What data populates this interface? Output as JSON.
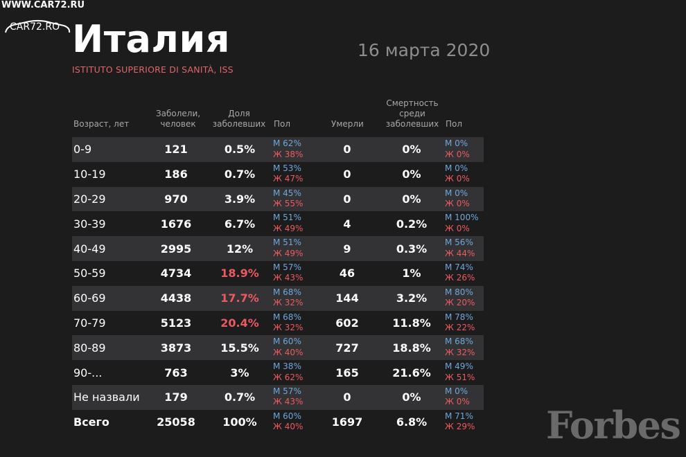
{
  "watermark": {
    "url": "WWW.CAR72.RU",
    "logo": "CAR72.RO"
  },
  "title": "Италия",
  "date": "16 марта 2020",
  "source": "ISTITUTO SUPERIORE DI SANITÀ, ISS",
  "headers": {
    "age": "Возраст, лет",
    "cases": [
      "Заболели,",
      "человек"
    ],
    "share": [
      "Доля",
      "заболевших"
    ],
    "sex": "Пол",
    "deaths": "Умерли",
    "mortality": [
      "Смертность",
      "среди",
      "заболевших"
    ],
    "sex2": "Пол"
  },
  "rows": [
    {
      "age": "0-9",
      "cases": "121",
      "share": "0.5%",
      "m1": "М 62%",
      "f1": "Ж 38%",
      "deaths": "0",
      "mort": "0%",
      "m2": "М 0%",
      "f2": "Ж 0%"
    },
    {
      "age": "10-19",
      "cases": "186",
      "share": "0.7%",
      "m1": "М 53%",
      "f1": "Ж 47%",
      "deaths": "0",
      "mort": "0%",
      "m2": "М 0%",
      "f2": "Ж 0%"
    },
    {
      "age": "20-29",
      "cases": "970",
      "share": "3.9%",
      "m1": "М 45%",
      "f1": "Ж 55%",
      "deaths": "0",
      "mort": "0%",
      "m2": "М 0%",
      "f2": "Ж 0%"
    },
    {
      "age": "30-39",
      "cases": "1676",
      "share": "6.7%",
      "m1": "М 51%",
      "f1": "Ж 49%",
      "deaths": "4",
      "mort": "0.2%",
      "m2": "М 100%",
      "f2": "Ж 0%"
    },
    {
      "age": "40-49",
      "cases": "2995",
      "share": "12%",
      "m1": "М 51%",
      "f1": "Ж 49%",
      "deaths": "9",
      "mort": "0.3%",
      "m2": "М 56%",
      "f2": "Ж 44%"
    },
    {
      "age": "50-59",
      "cases": "4734",
      "share": "18.9%",
      "m1": "М 57%",
      "f1": "Ж 43%",
      "deaths": "46",
      "mort": "1%",
      "m2": "М 74%",
      "f2": "Ж 26%"
    },
    {
      "age": "60-69",
      "cases": "4438",
      "share": "17.7%",
      "m1": "М 68%",
      "f1": "Ж 32%",
      "deaths": "144",
      "mort": "3.2%",
      "m2": "М 80%",
      "f2": "Ж 20%"
    },
    {
      "age": "70-79",
      "cases": "5123",
      "share": "20.4%",
      "m1": "М 68%",
      "f1": "Ж 32%",
      "deaths": "602",
      "mort": "11.8%",
      "m2": "М 78%",
      "f2": "Ж 22%"
    },
    {
      "age": "80-89",
      "cases": "3873",
      "share": "15.5%",
      "m1": "М 60%",
      "f1": "Ж 40%",
      "deaths": "727",
      "mort": "18.8%",
      "m2": "М 68%",
      "f2": "Ж 32%"
    },
    {
      "age": "90-...",
      "cases": "763",
      "share": "3%",
      "m1": "М 38%",
      "f1": "Ж 62%",
      "deaths": "165",
      "mort": "21.6%",
      "m2": "М 49%",
      "f2": "Ж 51%"
    },
    {
      "age": "Не назвали",
      "cases": "179",
      "share": "0.7%",
      "m1": "М 57%",
      "f1": "Ж 43%",
      "deaths": "0",
      "mort": "0%",
      "m2": "М 0%",
      "f2": "Ж 0%"
    },
    {
      "age": "Всего",
      "cases": "25058",
      "share": "100%",
      "m1": "М 60%",
      "f1": "Ж 40%",
      "deaths": "1697",
      "mort": "6.8%",
      "m2": "М 71%",
      "f2": "Ж 29%"
    }
  ],
  "highlighted_shares": [
    "18.9%",
    "17.7%",
    "20.4%"
  ],
  "colors": {
    "background": "#1c1c1d",
    "row_shade": "#333335",
    "accent_red": "#ec5a61",
    "male_blue": "#6fa7db",
    "muted_text": "#a8a8a8"
  },
  "brand": "Forbes"
}
